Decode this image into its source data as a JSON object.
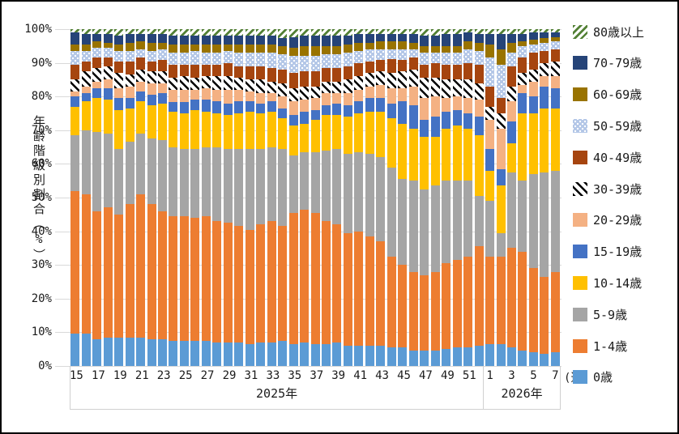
{
  "y_axis": {
    "title": "年齢階級別割合（%）",
    "tick_labels": [
      "0%",
      "10%",
      "20%",
      "30%",
      "40%",
      "50%",
      "60%",
      "70%",
      "80%",
      "90%",
      "100%"
    ]
  },
  "x_axis": {
    "unit_label": "(週)",
    "year_groups": [
      {
        "label": "2025年",
        "slot_count": 38
      },
      {
        "label": "2026年",
        "slot_count": 7
      }
    ],
    "tick_labels": [
      "15",
      "",
      "17",
      "",
      "19",
      "",
      "21",
      "",
      "23",
      "",
      "25",
      "",
      "27",
      "",
      "29",
      "",
      "31",
      "",
      "33",
      "",
      "35",
      "",
      "37",
      "",
      "39",
      "",
      "41",
      "",
      "43",
      "",
      "45",
      "",
      "47",
      "",
      "49",
      "",
      "51",
      "",
      "1",
      "",
      "3",
      "",
      "5",
      "",
      "7"
    ]
  },
  "legend_order": "top-is-last-series",
  "chart_data": {
    "type": "bar",
    "subtype": "stacked-100pct",
    "title": "",
    "xlabel": "(週)",
    "ylabel": "年齢階級別割合（%）",
    "ylim": [
      0,
      100
    ],
    "grid": true,
    "legend_position": "right",
    "categories": [
      15,
      16,
      17,
      18,
      19,
      20,
      21,
      22,
      23,
      24,
      25,
      26,
      27,
      28,
      29,
      30,
      31,
      32,
      33,
      34,
      35,
      36,
      37,
      38,
      39,
      40,
      41,
      42,
      43,
      44,
      45,
      46,
      47,
      48,
      49,
      50,
      51,
      52,
      1,
      2,
      3,
      4,
      5,
      6,
      7
    ],
    "category_years": {
      "2025年": [
        15,
        52
      ],
      "2026年": [
        1,
        7
      ]
    },
    "series": [
      {
        "name": "0歳",
        "color": "#5B9BD5",
        "pattern": "solid",
        "values": [
          9.5,
          9.5,
          8,
          8.5,
          8.5,
          8.5,
          8.5,
          8,
          8,
          7.5,
          7.5,
          7.5,
          7.5,
          7,
          7,
          7,
          6.5,
          7,
          7,
          7.5,
          6.5,
          7,
          6.5,
          6.5,
          7,
          6,
          6,
          6,
          6,
          5.5,
          5.5,
          4.5,
          4.5,
          4.5,
          5,
          5.5,
          5.5,
          6,
          6.5,
          6.5,
          5.5,
          4.5,
          4,
          3.5,
          4
        ]
      },
      {
        "name": "1-4歳",
        "color": "#ED7D31",
        "pattern": "solid",
        "values": [
          42.5,
          41.5,
          38,
          38.5,
          36.5,
          39.5,
          42.5,
          40,
          38,
          37,
          37,
          36.5,
          37,
          36,
          35.5,
          34.5,
          34,
          35,
          36,
          34,
          39,
          39.5,
          39,
          36.5,
          35,
          33.5,
          34,
          32.5,
          31,
          27,
          24.5,
          23.5,
          22.5,
          23.5,
          25.5,
          26,
          27,
          29.5,
          26,
          26,
          29.5,
          29.5,
          25,
          23,
          24
        ]
      },
      {
        "name": "5-9歳",
        "color": "#A5A5A5",
        "pattern": "solid",
        "values": [
          16.5,
          19,
          23.5,
          22,
          19.5,
          18.5,
          18,
          19.5,
          21,
          20.5,
          20,
          20.5,
          20.5,
          22,
          22,
          23,
          24,
          22.5,
          22,
          23,
          17,
          17,
          18,
          21,
          22.5,
          23.5,
          23.5,
          24.5,
          25,
          26.5,
          25.5,
          27,
          25.5,
          25.5,
          24.5,
          23.5,
          22.5,
          15,
          16.5,
          7,
          22.5,
          21,
          28,
          31,
          30
        ]
      },
      {
        "name": "10-14歳",
        "color": "#FFC000",
        "pattern": "solid",
        "values": [
          8.5,
          8.5,
          10,
          10,
          11.5,
          10,
          9.5,
          10,
          11,
          10.5,
          10.5,
          11.5,
          10.5,
          10,
          10,
          10.5,
          11,
          10.5,
          10.5,
          9,
          9,
          8.5,
          9.5,
          10.5,
          10,
          11,
          11.5,
          12.5,
          13.5,
          14.5,
          16.5,
          15.5,
          15.5,
          14.5,
          15.5,
          16.5,
          15.5,
          18,
          9,
          14,
          8.5,
          20,
          18,
          19,
          18.5
        ]
      },
      {
        "name": "15-19歳",
        "color": "#4472C4",
        "pattern": "solid",
        "values": [
          3,
          2.5,
          3,
          3.5,
          3.5,
          3,
          3,
          3,
          3,
          3,
          3.5,
          3,
          3.5,
          3.5,
          3.5,
          3.5,
          3,
          3,
          3,
          3,
          3,
          3.5,
          3,
          3,
          3.5,
          3.5,
          3.5,
          4,
          4,
          4.5,
          6.5,
          7,
          5,
          6,
          5,
          4.5,
          4.5,
          5.5,
          6.5,
          5,
          6.5,
          6,
          5,
          6.5,
          6
        ]
      },
      {
        "name": "20-29歳",
        "color": "#F4B183",
        "pattern": "solid",
        "values": [
          1.5,
          2,
          2,
          2.5,
          3,
          3.5,
          3,
          3.5,
          3,
          3.5,
          3.5,
          3,
          3.5,
          3.5,
          4,
          3.5,
          3,
          3,
          2.5,
          3.5,
          4,
          3.5,
          3.5,
          3.5,
          3,
          3.5,
          3.5,
          3.5,
          4,
          4.5,
          4,
          5.5,
          6.5,
          6,
          4,
          4,
          4.5,
          5,
          8.5,
          12,
          6,
          2.5,
          4.5,
          3,
          3.5
        ]
      },
      {
        "name": "30-39歳",
        "color": "#000000",
        "pattern": "black-hatch",
        "values": [
          3.5,
          4.5,
          4,
          4,
          4.5,
          3.5,
          3.5,
          3.5,
          3.5,
          3.5,
          4,
          3.5,
          3.5,
          4,
          4,
          3.5,
          3.5,
          4,
          3.5,
          4,
          4,
          4,
          3.5,
          3.5,
          3.5,
          4,
          4,
          4,
          4,
          4.5,
          5,
          5,
          6,
          5.5,
          5.5,
          5,
          5.5,
          5,
          4,
          4.5,
          4.5,
          3.5,
          3.5,
          4,
          4.5
        ]
      },
      {
        "name": "40-49歳",
        "color": "#A6450F",
        "pattern": "solid",
        "values": [
          4.5,
          3,
          3,
          2.5,
          3.5,
          4,
          3.5,
          3,
          3.5,
          4,
          3.5,
          4,
          3.5,
          3.5,
          4,
          3.5,
          4,
          4,
          4,
          4,
          4.5,
          4.5,
          4.5,
          4,
          4,
          4,
          4,
          3.5,
          3.5,
          4,
          3.5,
          3.5,
          4,
          4.5,
          4.5,
          4.5,
          5,
          5.5,
          6,
          4.5,
          6,
          4.5,
          5,
          3.5,
          3.5
        ]
      },
      {
        "name": "50-59歳",
        "color": "#B4C7E7",
        "pattern": "blue-dots",
        "values": [
          4,
          3,
          3,
          3,
          3,
          3,
          2.5,
          3,
          3,
          3.5,
          3.5,
          4,
          3.5,
          3.5,
          3.5,
          4,
          4,
          4,
          4.5,
          4.5,
          5,
          4.5,
          4.5,
          4,
          4,
          4,
          3.5,
          3.5,
          3,
          3,
          3,
          2.5,
          3.5,
          3,
          3.5,
          3.5,
          4,
          4,
          8.5,
          10,
          4,
          3.5,
          2.5,
          2.5,
          2.5
        ]
      },
      {
        "name": "60-69歳",
        "color": "#997300",
        "pattern": "solid",
        "values": [
          2,
          2,
          2,
          1.5,
          2,
          2.5,
          2.5,
          2.5,
          2,
          2.5,
          2.5,
          2,
          2.5,
          2.5,
          2,
          2.5,
          2.5,
          2.5,
          2.5,
          2.5,
          2.5,
          3,
          3,
          2.5,
          2.5,
          2.5,
          2.5,
          2,
          2.5,
          2.5,
          2.5,
          2,
          2,
          2,
          2,
          2,
          2.5,
          2.5,
          4,
          4.5,
          3,
          1.5,
          1.5,
          1.5,
          1
        ]
      },
      {
        "name": "70-79歳",
        "color": "#264478",
        "pattern": "solid",
        "values": [
          3.5,
          3,
          2,
          2.5,
          2.5,
          2.5,
          2,
          2.5,
          2.5,
          2.5,
          2.5,
          2.5,
          2.5,
          2.5,
          2.5,
          2.5,
          2.5,
          2.5,
          2.5,
          2.5,
          3,
          3,
          3,
          3,
          3,
          2.5,
          2.5,
          2.5,
          2,
          2,
          2,
          2.5,
          3,
          3,
          3.5,
          3.5,
          2.5,
          2.5,
          3,
          4.5,
          2.5,
          2,
          2,
          1.5,
          1.5
        ]
      },
      {
        "name": "80歳以上",
        "color": "#538135",
        "pattern": "green-hatch",
        "values": [
          1,
          1.5,
          1.5,
          1.5,
          2,
          1.5,
          1.5,
          1.5,
          1.5,
          2,
          2,
          2,
          2,
          2,
          2,
          2,
          2,
          2,
          2,
          2.5,
          2.5,
          2,
          2,
          2,
          2,
          2,
          1.5,
          1.5,
          1.5,
          1.5,
          1.5,
          1.5,
          2,
          2,
          1.5,
          1.5,
          1,
          1.5,
          1.5,
          1.5,
          1.5,
          1.5,
          1,
          1,
          1
        ]
      }
    ]
  }
}
